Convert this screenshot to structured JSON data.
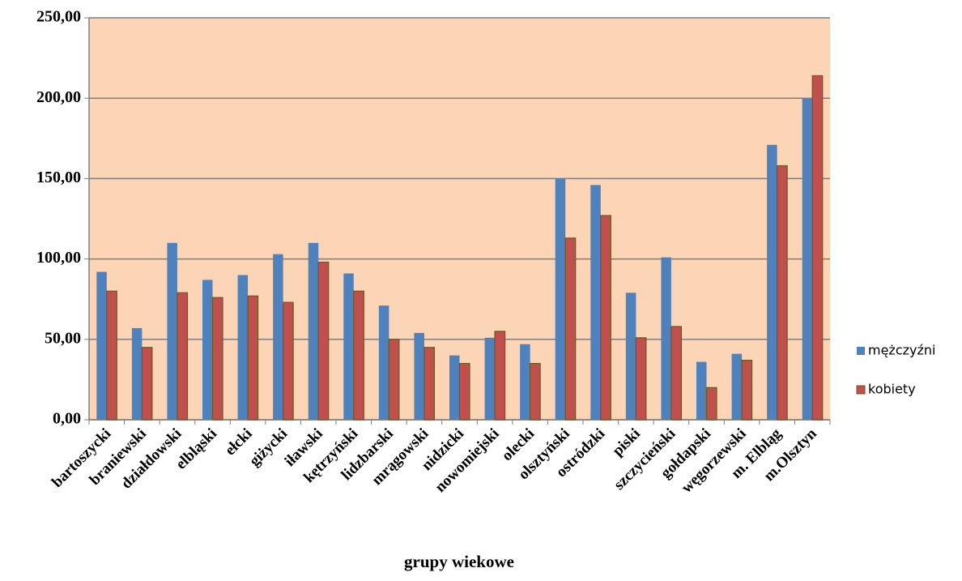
{
  "chart_data": {
    "type": "bar",
    "x_label": "grupy wiekowe",
    "categories": [
      "bartoszycki",
      "braniewski",
      "działdowski",
      "elbląski",
      "ełcki",
      "giżycki",
      "iławski",
      "kętrzyński",
      "lidzbarski",
      "mrągowski",
      "nidzicki",
      "nowomiejski",
      "olecki",
      "olsztyński",
      "ostródzki",
      "piski",
      "szczycieński",
      "gołdapski",
      "węgorzewski",
      "m. Elbląg",
      "m.Olsztyn"
    ],
    "series": [
      {
        "name": "mężczyźni",
        "color": "#4f81bd",
        "values": [
          92,
          57,
          110,
          87,
          90,
          103,
          110,
          91,
          71,
          54,
          40,
          51,
          47,
          150,
          146,
          79,
          101,
          36,
          41,
          171,
          200
        ]
      },
      {
        "name": "kobiety",
        "color": "#c0504d",
        "values": [
          80,
          45,
          79,
          76,
          77,
          73,
          98,
          80,
          50,
          45,
          35,
          55,
          35,
          113,
          127,
          51,
          58,
          20,
          37,
          158,
          214
        ]
      }
    ],
    "ylim": [
      0,
      250
    ],
    "yticks": [
      {
        "value": 0,
        "label": "0,00"
      },
      {
        "value": 50,
        "label": "50,00"
      },
      {
        "value": 100,
        "label": "100,00"
      },
      {
        "value": 150,
        "label": "150,00"
      },
      {
        "value": 200,
        "label": "200,00"
      },
      {
        "value": 250,
        "label": "250,00"
      }
    ],
    "grid": true,
    "plot_background": "#fbd5b5",
    "legend_position": "right"
  }
}
